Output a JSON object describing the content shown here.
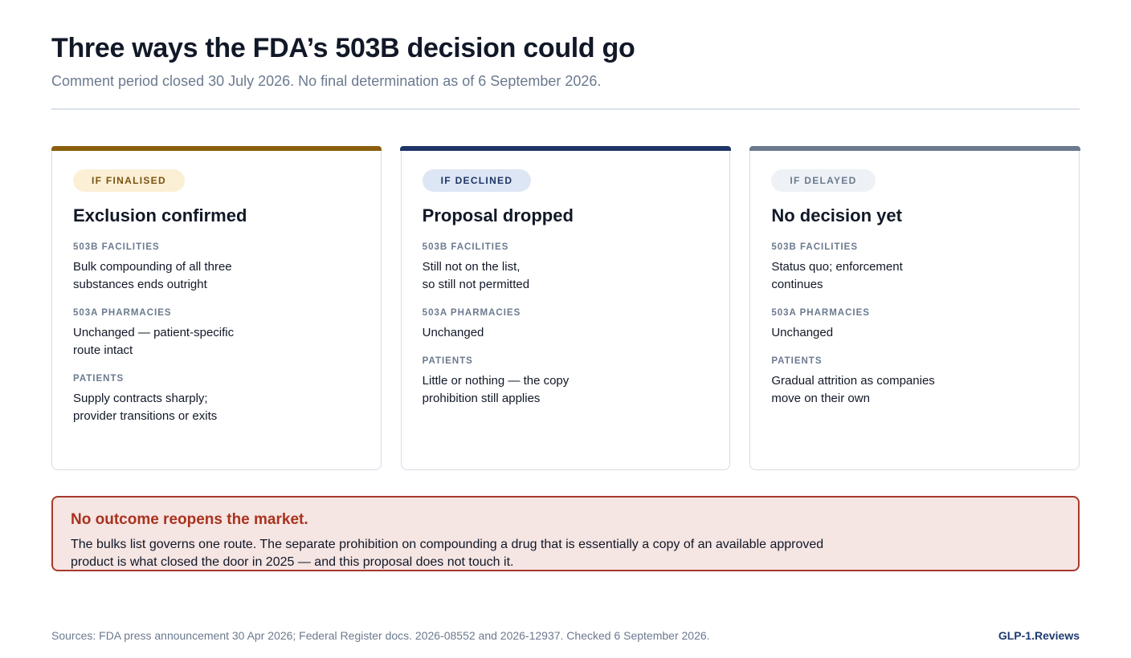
{
  "header": {
    "title": "Three ways the FDA’s 503B decision could go",
    "subtitle": "Comment period closed 30 July 2026. No final determination as of 6 September 2026."
  },
  "cards": [
    {
      "tag": "IF FINALISED",
      "accent": "#8a5e0c",
      "pill_bg": "#fbefd6",
      "pill_fg": "#7a5410",
      "title": "Exclusion confirmed",
      "sections": [
        {
          "label": "503B FACILITIES",
          "text": "Bulk compounding of all three\nsubstances ends outright"
        },
        {
          "label": "503A PHARMACIES",
          "text": "Unchanged — patient-specific\nroute intact"
        },
        {
          "label": "PATIENTS",
          "text": "Supply contracts sharply;\nprovider transitions or exits"
        }
      ]
    },
    {
      "tag": "IF DECLINED",
      "accent": "#1e3566",
      "pill_bg": "#dde6f4",
      "pill_fg": "#1e3566",
      "title": "Proposal dropped",
      "sections": [
        {
          "label": "503B FACILITIES",
          "text": "Still not on the list,\nso still not permitted"
        },
        {
          "label": "503A PHARMACIES",
          "text": "Unchanged"
        },
        {
          "label": "PATIENTS",
          "text": "Little or nothing — the copy\nprohibition still applies"
        }
      ]
    },
    {
      "tag": "IF DELAYED",
      "accent": "#6b7a8f",
      "pill_bg": "#eef2f6",
      "pill_fg": "#6b7a8f",
      "title": "No decision yet",
      "sections": [
        {
          "label": "503B FACILITIES",
          "text": "Status quo; enforcement\ncontinues"
        },
        {
          "label": "503A PHARMACIES",
          "text": "Unchanged"
        },
        {
          "label": "PATIENTS",
          "text": "Gradual attrition as companies\nmove on their own"
        }
      ]
    }
  ],
  "callout": {
    "title": "No outcome reopens the market.",
    "text": "The bulks list governs one route. The separate prohibition on compounding a drug that is essentially a copy of an available approved\nproduct is what closed the door in 2025 — and this proposal does not touch it."
  },
  "footer": {
    "sources": "Sources: FDA press announcement 30 Apr 2026; Federal Register docs. 2026-08552 and 2026-12937. Checked 6 September 2026.",
    "brand": "GLP-1.Reviews"
  }
}
